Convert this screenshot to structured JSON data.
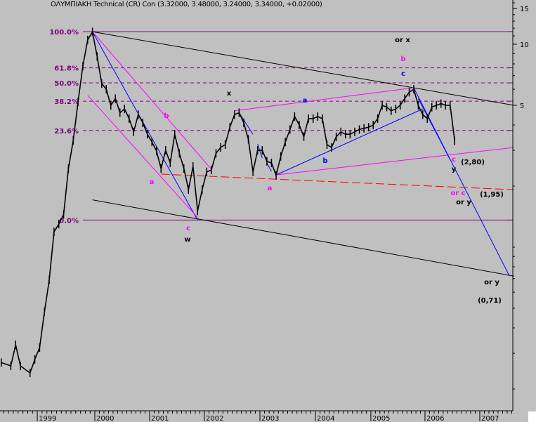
{
  "title": "ΟΛΥΜΠΙΑΚΗ Technical (CR) Con (3.32000, 3.48000, 3.24000, 3.34000, +0.02000)",
  "chart_data": {
    "type": "line",
    "title": "ΟΛΥΜΠΙΑΚΗ Technical (CR) Con (3.32000, 3.48000, 3.24000, 3.34000, +0.02000)",
    "y_scale": "log",
    "ylim": [
      0.155,
      17
    ],
    "xlim": [
      "1998-05",
      "2007-08"
    ],
    "grid": false,
    "y_ticks": [
      15,
      10,
      5
    ],
    "x_ticks": [
      "1999",
      "2000",
      "2001",
      "2002",
      "2003",
      "2004",
      "2005",
      "2006",
      "2007"
    ],
    "colors": {
      "price": "#000000",
      "fib": "#800080",
      "magenta": "#ff00ff",
      "blue": "#0000ff",
      "red": "#ff0000",
      "trend": "#000000"
    },
    "series": [
      {
        "dates": [
          "1998-05",
          "1998-07",
          "1998-08",
          "1998-09",
          "1998-11",
          "1998-12",
          "1999-01",
          "1999-02",
          "1999-03",
          "1999-04",
          "1999-05",
          "1999-06",
          "1999-07",
          "1999-08",
          "1999-09",
          "1999-10",
          "1999-11",
          "1999-12",
          "2000-01",
          "2000-02",
          "2000-03",
          "2000-04",
          "2000-05",
          "2000-06",
          "2000-07",
          "2000-08",
          "2000-09",
          "2000-10",
          "2000-11",
          "2000-12",
          "2001-01",
          "2001-02",
          "2001-03",
          "2001-04",
          "2001-05",
          "2001-06",
          "2001-07",
          "2001-08",
          "2001-09",
          "2001-10",
          "2001-11",
          "2001-12",
          "2002-01",
          "2002-02",
          "2002-03",
          "2002-04",
          "2002-05",
          "2002-06",
          "2002-07",
          "2002-08",
          "2002-09",
          "2002-10",
          "2002-11",
          "2002-12",
          "2003-01",
          "2003-02",
          "2003-03",
          "2003-04",
          "2003-05",
          "2003-06",
          "2003-07",
          "2003-08",
          "2003-09",
          "2003-10",
          "2003-11",
          "2003-12",
          "2004-01",
          "2004-02",
          "2004-03",
          "2004-04",
          "2004-05",
          "2004-06",
          "2004-07",
          "2004-08",
          "2004-09",
          "2004-10",
          "2004-11",
          "2004-12",
          "2005-01",
          "2005-02",
          "2005-03",
          "2005-04",
          "2005-05",
          "2005-06",
          "2005-07",
          "2005-08",
          "2005-09",
          "2005-10",
          "2005-11",
          "2005-12",
          "2006-01",
          "2006-02",
          "2006-03",
          "2006-04",
          "2006-05",
          "2006-06",
          "2006-07"
        ],
        "values": [
          0.27,
          0.26,
          0.33,
          0.26,
          0.24,
          0.28,
          0.32,
          0.48,
          0.69,
          1.19,
          1.3,
          1.45,
          2.44,
          3.36,
          5.2,
          7.8,
          10.5,
          11.5,
          8.7,
          6.4,
          6.0,
          5.0,
          5.4,
          4.6,
          4.8,
          4.3,
          3.7,
          4.5,
          4.1,
          3.6,
          3.3,
          2.98,
          2.44,
          3.0,
          2.6,
          3.6,
          2.9,
          2.44,
          1.92,
          2.5,
          1.51,
          1.92,
          2.35,
          2.4,
          2.9,
          3.1,
          3.2,
          3.9,
          4.5,
          4.6,
          4.1,
          3.4,
          2.35,
          3.0,
          3.0,
          2.65,
          2.6,
          2.26,
          2.8,
          3.3,
          3.8,
          4.4,
          4.0,
          3.5,
          4.3,
          4.3,
          4.4,
          4.3,
          3.2,
          3.1,
          3.5,
          3.7,
          3.6,
          3.6,
          3.7,
          3.8,
          3.85,
          3.9,
          4.0,
          4.3,
          5.0,
          4.9,
          4.7,
          4.8,
          5.0,
          5.4,
          5.8,
          6.0,
          5.0,
          4.5,
          4.3,
          4.9,
          5.0,
          5.1,
          5.0,
          5.0,
          3.34
        ]
      }
    ],
    "fib_levels": [
      {
        "label": "100.0%",
        "value": 11.53,
        "style": "solid"
      },
      {
        "label": "61.8%",
        "value": 7.65,
        "style": "dashed"
      },
      {
        "label": "50.0%",
        "value": 6.45,
        "style": "dashed"
      },
      {
        "label": "38.2%",
        "value": 5.24,
        "style": "dashed"
      },
      {
        "label": "23.6%",
        "value": 3.76,
        "style": "dashed"
      },
      {
        "label": "0.0%",
        "value": 1.36,
        "style": "solid"
      }
    ],
    "trendlines": [
      {
        "color": "#000000",
        "from": [
          "1999-12",
          11.53
        ],
        "to": [
          "2007-08",
          5.0
        ]
      },
      {
        "color": "#000000",
        "from": [
          "1999-12",
          1.71
        ],
        "to": [
          "2007-08",
          0.72
        ]
      },
      {
        "color": "#0000ff",
        "from": [
          "1999-12",
          11.53
        ],
        "to": [
          "2001-11",
          1.36
        ]
      },
      {
        "color": "#ff00ff",
        "from": [
          "1999-12",
          11.53
        ],
        "to": [
          "2002-02",
          2.42
        ]
      },
      {
        "color": "#ff00ff",
        "from": [
          "1999-11",
          5.6
        ],
        "to": [
          "2001-11",
          1.4
        ]
      },
      {
        "color": "#ff0000",
        "from": [
          "2001-03",
          2.29
        ],
        "to": [
          "2007-08",
          1.92
        ],
        "style": "dashed"
      },
      {
        "color": "#ff00ff",
        "from": [
          "2002-07",
          4.7
        ],
        "to": [
          "2005-10",
          6.1
        ]
      },
      {
        "color": "#0000ff",
        "from": [
          "2003-04",
          2.27
        ],
        "to": [
          "2005-12",
          4.8
        ]
      },
      {
        "color": "#ff00ff",
        "from": [
          "2003-04",
          2.27
        ],
        "to": [
          "2007-08",
          3.1
        ]
      },
      {
        "color": "#0000ff",
        "from": [
          "2005-10",
          6.1
        ],
        "to": [
          "2007-07",
          0.72
        ]
      },
      {
        "color": "#0000ff",
        "from": [
          "2005-11",
          5.4
        ],
        "to": [
          "2006-06",
          2.7
        ]
      },
      {
        "color": "#0000ff",
        "from": [
          "2002-08",
          4.6
        ],
        "to": [
          "2002-11",
          3.6
        ]
      },
      {
        "color": "#0000ff",
        "from": [
          "2002-12",
          3.22
        ],
        "to": [
          "2003-01",
          2.75
        ]
      },
      {
        "color": "#0000ff",
        "from": [
          "2003-02",
          2.6
        ],
        "to": [
          "2003-03",
          2.36
        ]
      }
    ],
    "annotations": [
      {
        "text": "x",
        "color": "#000000"
      },
      {
        "text": "or x",
        "color": "#000000"
      },
      {
        "text": "b",
        "color": "#ff00ff"
      },
      {
        "text": "c",
        "color": "#0000ff"
      },
      {
        "text": "a",
        "color": "#0000ff"
      },
      {
        "text": "b",
        "color": "#0000ff"
      },
      {
        "text": "a",
        "color": "#ff00ff"
      },
      {
        "text": "b",
        "color": "#ff00ff"
      },
      {
        "text": "a",
        "color": "#ff00ff"
      },
      {
        "text": "c",
        "color": "#ff00ff"
      },
      {
        "text": "w",
        "color": "#000000"
      },
      {
        "text": "c",
        "color": "#ff00ff"
      },
      {
        "text": "y",
        "color": "#000000"
      },
      {
        "text": "(2,80)",
        "color": "#000000"
      },
      {
        "text": "or c",
        "color": "#ff00ff"
      },
      {
        "text": "(1,95)",
        "color": "#000000"
      },
      {
        "text": "or y",
        "color": "#000000"
      },
      {
        "text": "or y",
        "color": "#000000"
      },
      {
        "text": "(0,71)",
        "color": "#000000"
      }
    ]
  }
}
